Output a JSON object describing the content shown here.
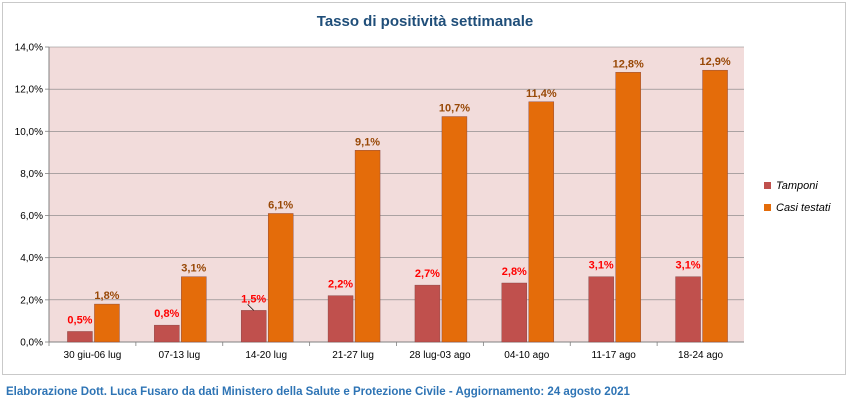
{
  "chart_data": {
    "type": "bar",
    "title": "Tasso di positività settimanale",
    "categories": [
      "30 giu-06 lug",
      "07-13 lug",
      "14-20 lug",
      "21-27 lug",
      "28 lug-03 ago",
      "04-10 ago",
      "11-17 ago",
      "18-24 ago"
    ],
    "series": [
      {
        "name": "Tamponi",
        "color": "#c0504d",
        "label_color": "#ff0000",
        "values": [
          0.5,
          0.8,
          1.5,
          2.2,
          2.7,
          2.8,
          3.1,
          3.1
        ],
        "labels": [
          "0,5%",
          "0,8%",
          "1,5%",
          "2,2%",
          "2,7%",
          "2,8%",
          "3,1%",
          "3,1%"
        ]
      },
      {
        "name": "Casi testati",
        "color": "#e46c0a",
        "label_color": "#984806",
        "values": [
          1.8,
          3.1,
          6.1,
          9.1,
          10.7,
          11.4,
          12.8,
          12.9
        ],
        "labels": [
          "1,8%",
          "3,1%",
          "6,1%",
          "9,1%",
          "10,7%",
          "11,4%",
          "12,8%",
          "12,9%"
        ]
      }
    ],
    "ylim": [
      0,
      14
    ],
    "yticks": [
      0,
      2,
      4,
      6,
      8,
      10,
      12,
      14
    ],
    "ytick_labels": [
      "0,0%",
      "2,0%",
      "4,0%",
      "6,0%",
      "8,0%",
      "10,0%",
      "12,0%",
      "14,0%"
    ],
    "plot_background": "#f2dcdb",
    "grid": true,
    "legend_position": "right"
  },
  "credit": "Elaborazione Dott. Luca Fusaro da dati Ministero della Salute e Protezione Civile - Aggiornamento: 24 agosto 2021"
}
